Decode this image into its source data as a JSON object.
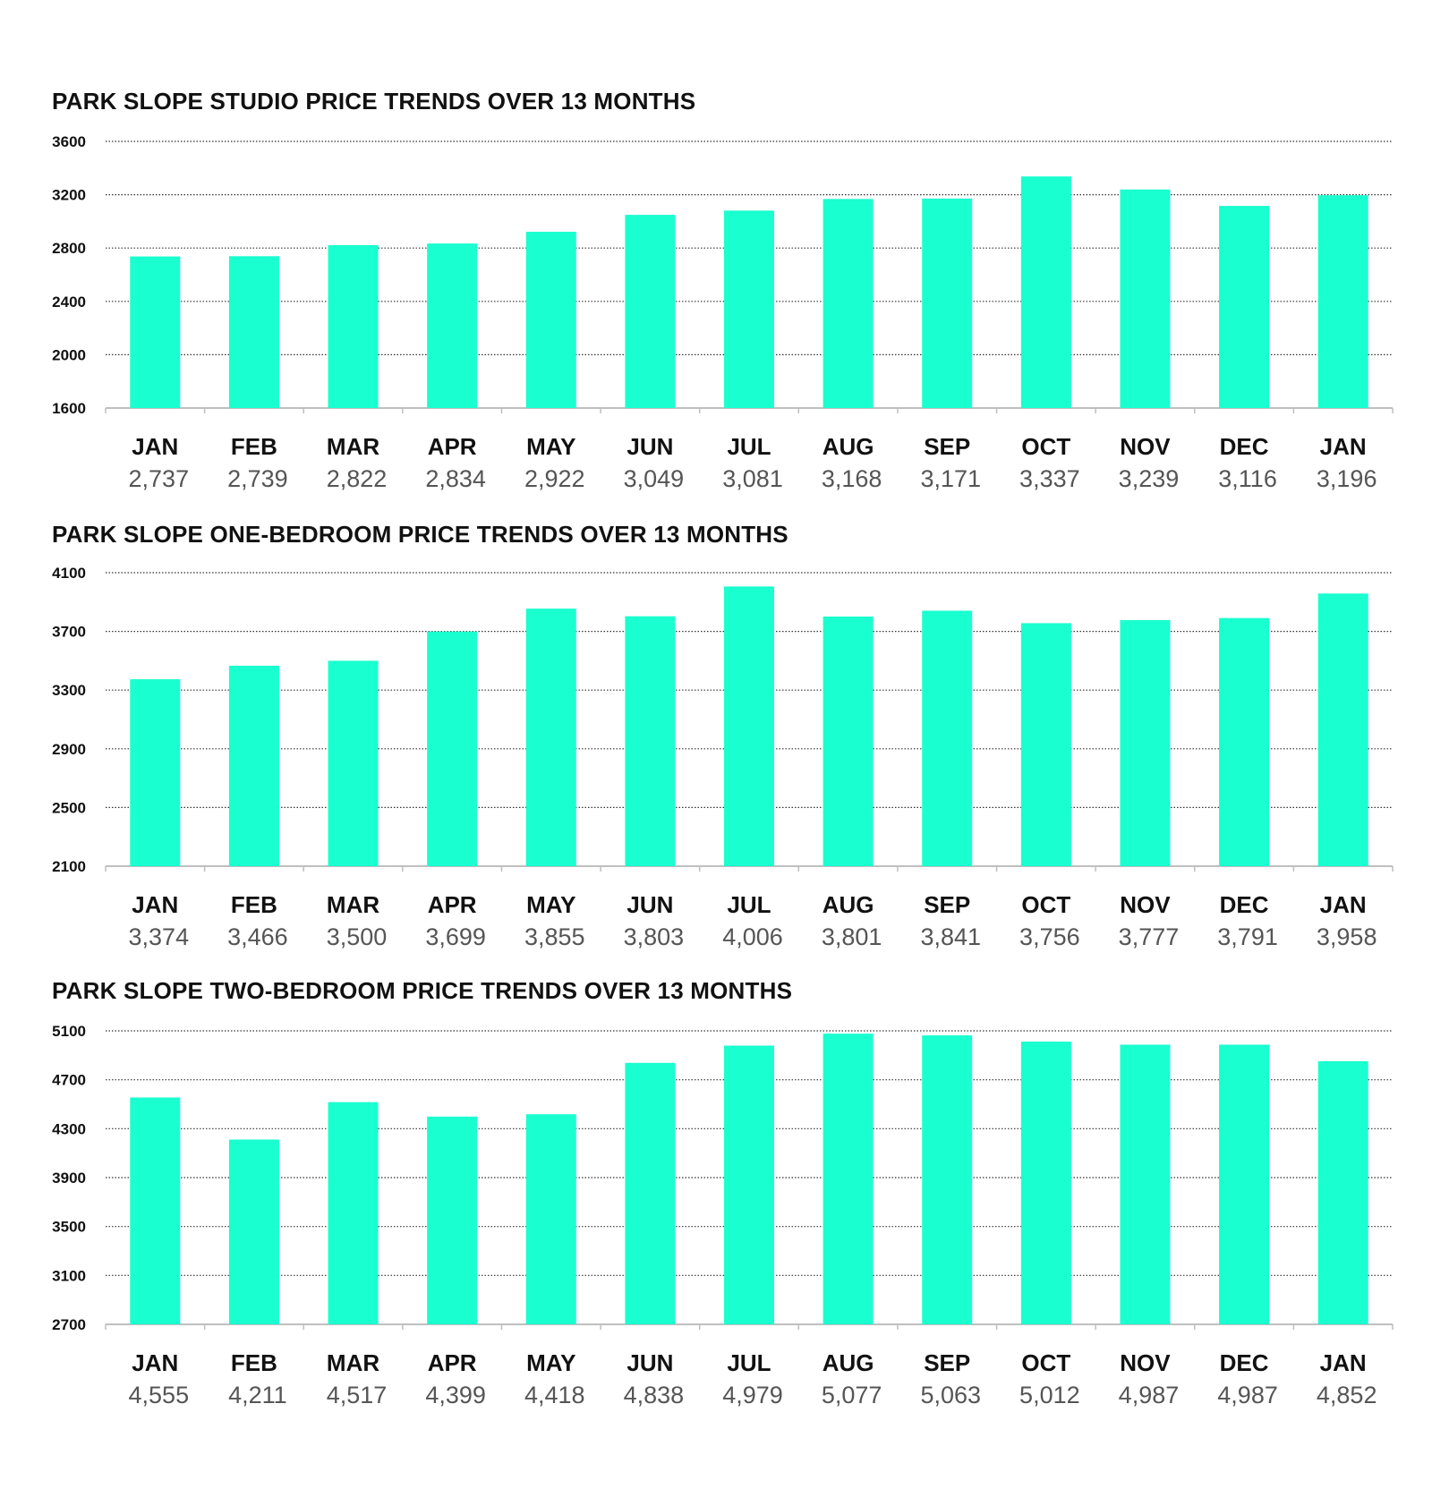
{
  "colors": {
    "bar": "#1affcf",
    "grid": "#333333",
    "axis": "#bfbfbf",
    "title": "#111111",
    "value_text": "#555555"
  },
  "chart_data": [
    {
      "type": "bar",
      "title": "PARK SLOPE STUDIO PRICE TRENDS OVER 13 MONTHS",
      "categories": [
        "JAN",
        "FEB",
        "MAR",
        "APR",
        "MAY",
        "JUN",
        "JUL",
        "AUG",
        "SEP",
        "OCT",
        "NOV",
        "DEC",
        "JAN"
      ],
      "values": [
        2737,
        2739,
        2822,
        2834,
        2922,
        3049,
        3081,
        3168,
        3171,
        3337,
        3239,
        3116,
        3196
      ],
      "value_labels": [
        "2,737",
        "2,739",
        "2,822",
        "2,834",
        "2,922",
        "3,049",
        "3,081",
        "3,168",
        "3,171",
        "3,337",
        "3,239",
        "3,116",
        "3,196"
      ],
      "yticks": [
        "1600",
        "2000",
        "2400",
        "2800",
        "3200",
        "3600"
      ],
      "ylim": [
        1600,
        3600
      ],
      "xlabel": "",
      "ylabel": "",
      "grid": true
    },
    {
      "type": "bar",
      "title": "PARK SLOPE ONE-BEDROOM PRICE TRENDS OVER 13 MONTHS",
      "categories": [
        "JAN",
        "FEB",
        "MAR",
        "APR",
        "MAY",
        "JUN",
        "JUL",
        "AUG",
        "SEP",
        "OCT",
        "NOV",
        "DEC",
        "JAN"
      ],
      "values": [
        3374,
        3466,
        3500,
        3699,
        3855,
        3803,
        4006,
        3801,
        3841,
        3756,
        3777,
        3791,
        3958
      ],
      "value_labels": [
        "3,374",
        "3,466",
        "3,500",
        "3,699",
        "3,855",
        "3,803",
        "4,006",
        "3,801",
        "3,841",
        "3,756",
        "3,777",
        "3,791",
        "3,958"
      ],
      "yticks": [
        "2100",
        "2500",
        "2900",
        "3300",
        "3700",
        "4100"
      ],
      "ylim": [
        2100,
        4100
      ],
      "xlabel": "",
      "ylabel": "",
      "grid": true
    },
    {
      "type": "bar",
      "title": "PARK SLOPE TWO-BEDROOM PRICE TRENDS OVER 13 MONTHS",
      "categories": [
        "JAN",
        "FEB",
        "MAR",
        "APR",
        "MAY",
        "JUN",
        "JUL",
        "AUG",
        "SEP",
        "OCT",
        "NOV",
        "DEC",
        "JAN"
      ],
      "values": [
        4555,
        4211,
        4517,
        4399,
        4418,
        4838,
        4979,
        5077,
        5063,
        5012,
        4987,
        4987,
        4852
      ],
      "value_labels": [
        "4,555",
        "4,211",
        "4,517",
        "4,399",
        "4,418",
        "4,838",
        "4,979",
        "5,077",
        "5,063",
        "5,012",
        "4,987",
        "4,987",
        "4,852"
      ],
      "yticks": [
        "2700",
        "3100",
        "3500",
        "3900",
        "4300",
        "4700",
        "5100"
      ],
      "ylim": [
        2700,
        5100
      ],
      "xlabel": "",
      "ylabel": "",
      "grid": true
    }
  ]
}
